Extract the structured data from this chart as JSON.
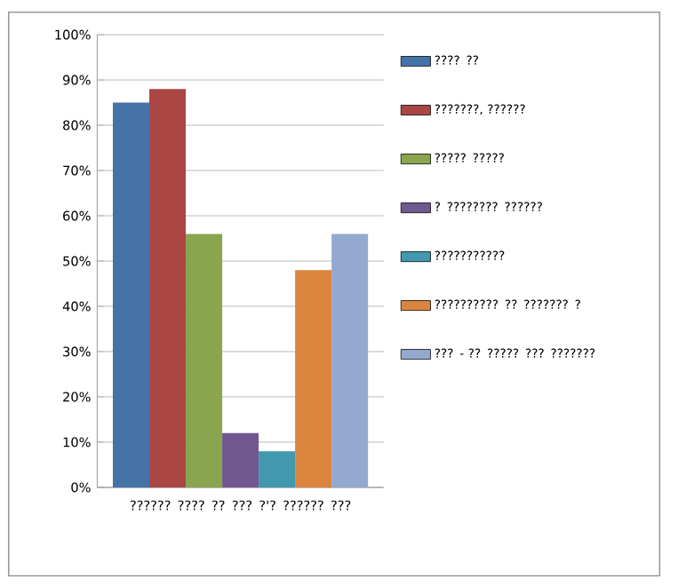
{
  "chart_data": {
    "type": "bar",
    "categories": [
      "?????? ???? ?? ??? ?'? ?????? ???"
    ],
    "series": [
      {
        "name": "???? ??",
        "color": "#4572a7",
        "values": [
          85
        ]
      },
      {
        "name": "???????, ??????",
        "color": "#aa4643",
        "values": [
          88
        ]
      },
      {
        "name": "????? ?????",
        "color": "#89a54e",
        "values": [
          56
        ]
      },
      {
        "name": "?  ???????? ??????",
        "color": "#71588f",
        "values": [
          12
        ]
      },
      {
        "name": "???????????",
        "color": "#4198af",
        "values": [
          8
        ]
      },
      {
        "name": "?????????? ?? ??????? ?",
        "color": "#db843d",
        "values": [
          48
        ]
      },
      {
        "name": "??? - ?? ????? ??? ???????",
        "color": "#93a9cf",
        "values": [
          56
        ]
      }
    ],
    "ylim": [
      0,
      100
    ],
    "yticks": [
      {
        "value": 0,
        "label": "0%"
      },
      {
        "value": 10,
        "label": "10%"
      },
      {
        "value": 20,
        "label": "20%"
      },
      {
        "value": 30,
        "label": "30%"
      },
      {
        "value": 40,
        "label": "40%"
      },
      {
        "value": 50,
        "label": "50%"
      },
      {
        "value": 60,
        "label": "60%"
      },
      {
        "value": 70,
        "label": "70%"
      },
      {
        "value": 80,
        "label": "80%"
      },
      {
        "value": 90,
        "label": "90%"
      },
      {
        "value": 100,
        "label": "100%"
      }
    ],
    "grid": "y",
    "legend": "right"
  }
}
